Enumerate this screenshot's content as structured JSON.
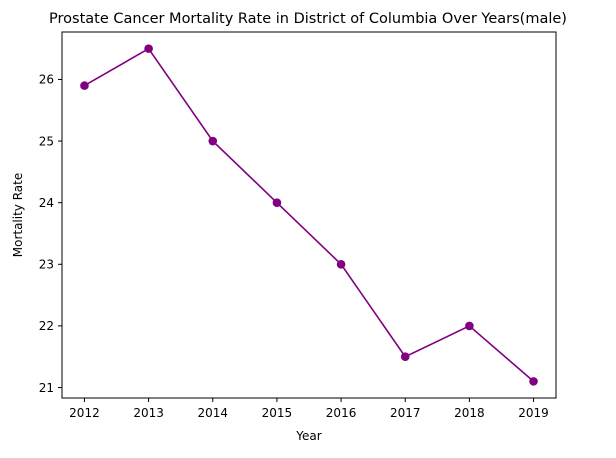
{
  "chart_data": {
    "type": "line",
    "title": "Prostate Cancer Mortality Rate in District of Columbia Over Years(male)",
    "xlabel": "Year",
    "ylabel": "Mortality Rate",
    "x": [
      2012,
      2013,
      2014,
      2015,
      2016,
      2017,
      2018,
      2019
    ],
    "series": [
      {
        "values": [
          25.9,
          26.5,
          25.0,
          24.0,
          23.0,
          21.5,
          22.0,
          21.1
        ],
        "color": "#800080",
        "marker": "circle"
      }
    ],
    "xticks": [
      "2012",
      "2013",
      "2014",
      "2015",
      "2016",
      "2017",
      "2018",
      "2019"
    ],
    "yticks": [
      "21",
      "22",
      "23",
      "24",
      "25",
      "26"
    ],
    "xlim": [
      2011.65,
      2019.35
    ],
    "ylim": [
      20.83,
      26.77
    ],
    "grid": false,
    "legend": "none"
  }
}
